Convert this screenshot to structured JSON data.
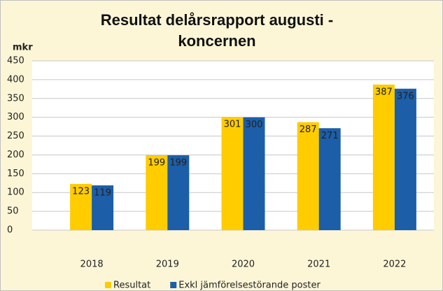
{
  "chart_data": {
    "type": "bar",
    "title": "Resultat delårsrapport augusti - koncernen",
    "y_label": "mkr",
    "categories": [
      "2018",
      "2019",
      "2020",
      "2021",
      "2022"
    ],
    "series": [
      {
        "name": "Resultat",
        "color": "#ffcc00",
        "values": [
          123,
          199,
          301,
          287,
          387
        ]
      },
      {
        "name": "Exkl jämförelsestörande poster",
        "color": "#1c5ea8",
        "values": [
          119,
          199,
          300,
          271,
          376
        ]
      }
    ],
    "ylim": [
      0,
      450
    ],
    "yticks": [
      0,
      50,
      100,
      150,
      200,
      250,
      300,
      350,
      400,
      450
    ],
    "grid": true,
    "legend": "bottom"
  }
}
